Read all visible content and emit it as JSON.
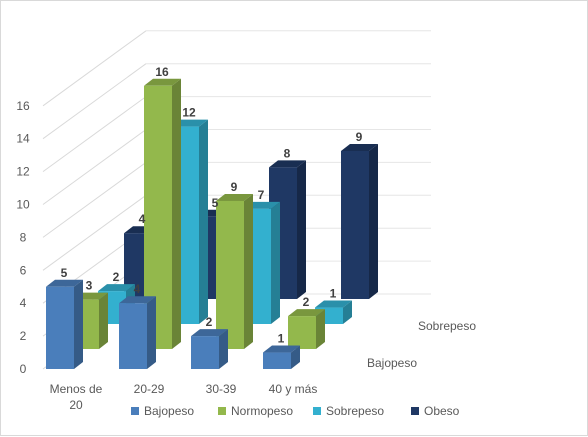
{
  "chart_data": {
    "type": "bar",
    "subtype": "3d-clustered-column",
    "title": "",
    "xlabel": "",
    "ylabel": "",
    "categories": [
      "Menos de 20",
      "20-29",
      "30-39",
      "40 y más"
    ],
    "category_lines": [
      [
        "Menos de",
        "20"
      ],
      [
        "20-29"
      ],
      [
        "30-39"
      ],
      [
        "40 y más"
      ]
    ],
    "depth_axis_labels": [
      "Sobrepeso",
      "Bajopeso"
    ],
    "ylim": [
      0,
      16
    ],
    "yticks": [
      "0",
      "2",
      "4",
      "6",
      "8",
      "10",
      "12",
      "14",
      "16"
    ],
    "grid": true,
    "legend_position": "bottom",
    "series": [
      {
        "name": "Bajopeso",
        "values": [
          5,
          4,
          2,
          1
        ],
        "color": "#4a7ebb"
      },
      {
        "name": "Normopeso",
        "values": [
          3,
          16,
          9,
          2
        ],
        "color": "#93b84c"
      },
      {
        "name": "Sobrepeso",
        "values": [
          2,
          12,
          7,
          1
        ],
        "color": "#33b0cf"
      },
      {
        "name": "Obeso",
        "values": [
          4,
          5,
          8,
          9
        ],
        "color": "#1f3864"
      }
    ]
  }
}
